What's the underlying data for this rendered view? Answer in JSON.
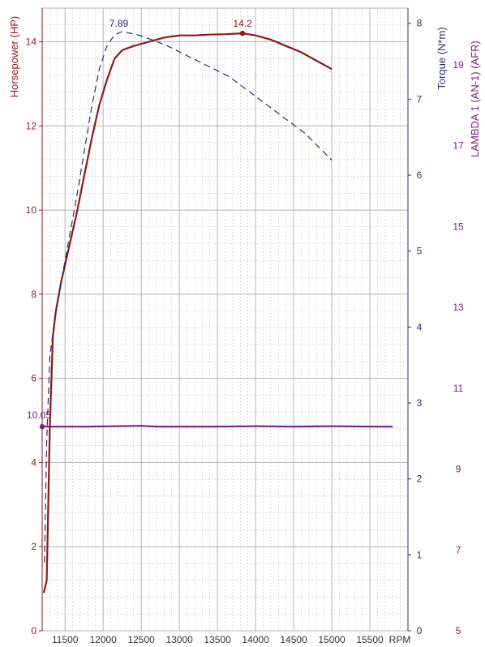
{
  "chart_data": {
    "type": "line",
    "x_axis": {
      "label": "RPM",
      "range": [
        11200,
        16000
      ],
      "ticks": [
        11500,
        12000,
        12500,
        13000,
        13500,
        14000,
        14500,
        15000,
        15500
      ],
      "tick_labels": [
        "11500",
        "12000",
        "12500",
        "13000",
        "13500",
        "14000",
        "14500",
        "15000",
        "15500"
      ]
    },
    "axes": {
      "hp": {
        "label": "Horsepower (HP)",
        "side": "left",
        "range": [
          0,
          14.8
        ],
        "ticks": [
          0,
          2,
          4,
          6,
          8,
          10,
          12,
          14
        ],
        "color": "#8b1a1a"
      },
      "torque": {
        "label": "Torque (N*m)",
        "side": "right",
        "range": [
          0,
          8.2
        ],
        "ticks": [
          0,
          1,
          2,
          3,
          4,
          5,
          6,
          7,
          8
        ],
        "color": "#30306e"
      },
      "lambda": {
        "label": "LAMBDA 1 (AN-1) (AFR)",
        "side": "right",
        "range": [
          5,
          20.4
        ],
        "ticks": [
          5,
          7,
          9,
          11,
          13,
          15,
          17,
          19
        ],
        "color": "#7a1f7a"
      }
    },
    "series": [
      {
        "axis": "hp",
        "style": "solid",
        "color": "#8b1a1a",
        "x": [
          11220,
          11260,
          11300,
          11340,
          11380,
          11450,
          11550,
          11650,
          11750,
          11850,
          11950,
          12050,
          12150,
          12250,
          12400,
          12600,
          12800,
          13000,
          13200,
          13400,
          13600,
          13830,
          14000,
          14200,
          14400,
          14600,
          14800,
          15000
        ],
        "y": [
          0.9,
          1.2,
          4.8,
          7.0,
          7.6,
          8.3,
          9.1,
          9.9,
          10.8,
          11.7,
          12.5,
          13.1,
          13.6,
          13.8,
          13.9,
          14.0,
          14.1,
          14.15,
          14.15,
          14.17,
          14.18,
          14.2,
          14.15,
          14.05,
          13.9,
          13.75,
          13.55,
          13.35
        ]
      },
      {
        "axis": "torque",
        "style": "dashed",
        "color": "#30306e",
        "x": [
          11230,
          11260,
          11300,
          11350,
          11450,
          11550,
          11650,
          11750,
          11850,
          11950,
          12050,
          12150,
          12250,
          12300,
          12450,
          12650,
          12850,
          13050,
          13250,
          13450,
          13650,
          13850,
          14050,
          14250,
          14450,
          14650,
          14850,
          15000
        ],
        "y": [
          0.9,
          2.5,
          3.6,
          4.0,
          4.6,
          5.15,
          5.7,
          6.3,
          6.9,
          7.4,
          7.7,
          7.85,
          7.89,
          7.88,
          7.85,
          7.78,
          7.7,
          7.6,
          7.5,
          7.4,
          7.3,
          7.15,
          7.0,
          6.85,
          6.7,
          6.55,
          6.35,
          6.2
        ]
      },
      {
        "axis": "lambda",
        "style": "solid",
        "color": "#7a1f7a",
        "x": [
          11200,
          11800,
          12500,
          12700,
          13500,
          14000,
          14500,
          15000,
          15500,
          15800
        ],
        "y": [
          10.05,
          10.05,
          10.07,
          10.05,
          10.05,
          10.06,
          10.05,
          10.06,
          10.05,
          10.05
        ]
      }
    ],
    "annotations": [
      {
        "series_axis": "hp",
        "x": 13830,
        "y": 14.2,
        "label": "14.2",
        "color": "#8b1a1a"
      },
      {
        "series_axis": "torque",
        "x": 12270,
        "y": 7.89,
        "label": "7.89",
        "color": "#30306e"
      },
      {
        "series_axis": "lambda",
        "x": 11200,
        "y": 10.05,
        "label": "10.05",
        "color": "#7a1f7a"
      }
    ],
    "grid": true,
    "grid_color": "#c8c8c8",
    "minor_grid_style": "dashed"
  }
}
